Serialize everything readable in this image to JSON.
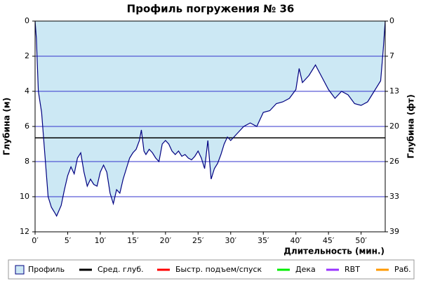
{
  "chart_data": {
    "type": "dive-profile",
    "title": "Профиль погружения № 36",
    "ylabel": "Глубина (м)",
    "y2label": "Глубина (фт)",
    "xlabel": "Длительность (мин.)",
    "xlim": [
      0,
      53.7
    ],
    "xticks": [
      {
        "value": 0,
        "label": "0′"
      },
      {
        "value": 5,
        "label": "5′"
      },
      {
        "value": 10,
        "label": "10′"
      },
      {
        "value": 15,
        "label": "15′"
      },
      {
        "value": 20,
        "label": "20′"
      },
      {
        "value": 25,
        "label": "25′"
      },
      {
        "value": 30,
        "label": "30′"
      },
      {
        "value": 35,
        "label": "35′"
      },
      {
        "value": 40,
        "label": "40′"
      },
      {
        "value": 45,
        "label": "45′"
      },
      {
        "value": 50,
        "label": "50′"
      }
    ],
    "ylim": [
      0,
      12
    ],
    "yticks": [
      0,
      2,
      4,
      6,
      8,
      10,
      12
    ],
    "y2lim": [
      0,
      39.37
    ],
    "y2ticks": [
      0,
      {
        "value": 6.562,
        "label": "7"
      },
      {
        "value": 13.123,
        "label": "13"
      },
      {
        "value": 19.685,
        "label": "20"
      },
      {
        "value": 26.247,
        "label": "26"
      },
      {
        "value": 32.808,
        "label": "33"
      },
      {
        "value": 39.37,
        "label": "39"
      }
    ],
    "inverted": true,
    "grid": true,
    "grid_color": "#3333cc",
    "series": [
      {
        "name": "Профиль",
        "color": "#cce8f4",
        "stroke": "#000080",
        "x": [
          0,
          0.2,
          0.5,
          1,
          1.5,
          2,
          2.5,
          3,
          3.3,
          4,
          4.5,
          5,
          5.5,
          6,
          6.5,
          7,
          7.5,
          8,
          8.5,
          9,
          9.5,
          10,
          10.5,
          11,
          11.5,
          12,
          12.5,
          13,
          13.5,
          14,
          14.5,
          15,
          15.5,
          16,
          16.3,
          16.7,
          17,
          17.5,
          18,
          18.5,
          19,
          19.5,
          20,
          20.5,
          21,
          21.5,
          22,
          22.5,
          23,
          23.5,
          24,
          24.5,
          25,
          25.5,
          26,
          26.5,
          27,
          27.5,
          28,
          28.5,
          29,
          29.5,
          30,
          31,
          32,
          33,
          34,
          35,
          36,
          37,
          38,
          39,
          40,
          40.5,
          41,
          42,
          43,
          44,
          45,
          46,
          47,
          48,
          49,
          50,
          51,
          52,
          53,
          53.4,
          53.7
        ],
        "values": [
          0,
          1,
          4,
          5.2,
          7.6,
          10,
          10.6,
          10.9,
          11.1,
          10.5,
          9.6,
          8.8,
          8.3,
          8.7,
          7.8,
          7.5,
          8.6,
          9.4,
          9.0,
          9.3,
          9.4,
          8.6,
          8.2,
          8.6,
          9.8,
          10.4,
          9.6,
          9.8,
          9.0,
          8.4,
          7.8,
          7.5,
          7.3,
          6.8,
          6.2,
          7.4,
          7.6,
          7.3,
          7.5,
          7.8,
          8.0,
          7.0,
          6.8,
          7.0,
          7.4,
          7.6,
          7.4,
          7.7,
          7.6,
          7.8,
          7.9,
          7.7,
          7.4,
          7.8,
          8.4,
          6.8,
          9.0,
          8.4,
          8.1,
          7.6,
          7.0,
          6.6,
          6.8,
          6.4,
          6.0,
          5.8,
          6.0,
          5.2,
          5.1,
          4.7,
          4.6,
          4.4,
          3.9,
          2.7,
          3.5,
          3.1,
          2.5,
          3.2,
          3.9,
          4.4,
          4.0,
          4.2,
          4.7,
          4.8,
          4.6,
          4.0,
          3.4,
          1.6,
          0
        ]
      },
      {
        "name": "Сред. глуб.",
        "color": "#000000",
        "value": 6.65
      }
    ],
    "legend": [
      {
        "name": "Профиль",
        "color": "#cce8f4"
      },
      {
        "name": "Сред. глуб.",
        "color": "#000000"
      },
      {
        "name": "Быстр. подъем/спуск",
        "color": "#ff0000"
      },
      {
        "name": "Дека",
        "color": "#00ee00"
      },
      {
        "name": "RBT",
        "color": "#9933ff"
      },
      {
        "name": "Раб.",
        "color": "#ff9900"
      }
    ]
  }
}
